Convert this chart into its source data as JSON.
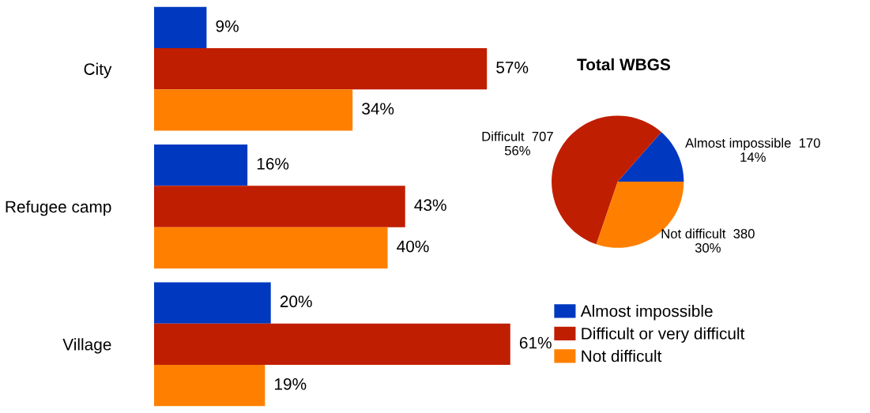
{
  "chart_data": [
    {
      "type": "bar",
      "orientation": "horizontal",
      "categories": [
        "City",
        "Refugee camp",
        "Village"
      ],
      "series": [
        {
          "name": "Almost impossible",
          "color": "#0039c0",
          "values": [
            9,
            16,
            20
          ],
          "value_labels": [
            "9%",
            "16%",
            "20%"
          ]
        },
        {
          "name": "Difficult or very difficult",
          "color": "#c01e00",
          "values": [
            57,
            43,
            61
          ],
          "value_labels": [
            "57%",
            "43%",
            "61%"
          ]
        },
        {
          "name": "Not difficult",
          "color": "#ff8000",
          "values": [
            34,
            40,
            19
          ],
          "value_labels": [
            "34%",
            "40%",
            "19%"
          ]
        }
      ],
      "legend": "bottom right",
      "tick_labels": "y",
      "grid": false
    },
    {
      "type": "pie",
      "title": "Total WBGS",
      "categories": [
        "Almost impossible",
        "Difficult",
        "Not difficult"
      ],
      "values": [
        170,
        707,
        380
      ],
      "colors": [
        "#0039c0",
        "#c01e00",
        "#ff8000"
      ],
      "value_labels": [
        "170\n14%",
        "707\n56%",
        "380\n30%"
      ]
    }
  ]
}
